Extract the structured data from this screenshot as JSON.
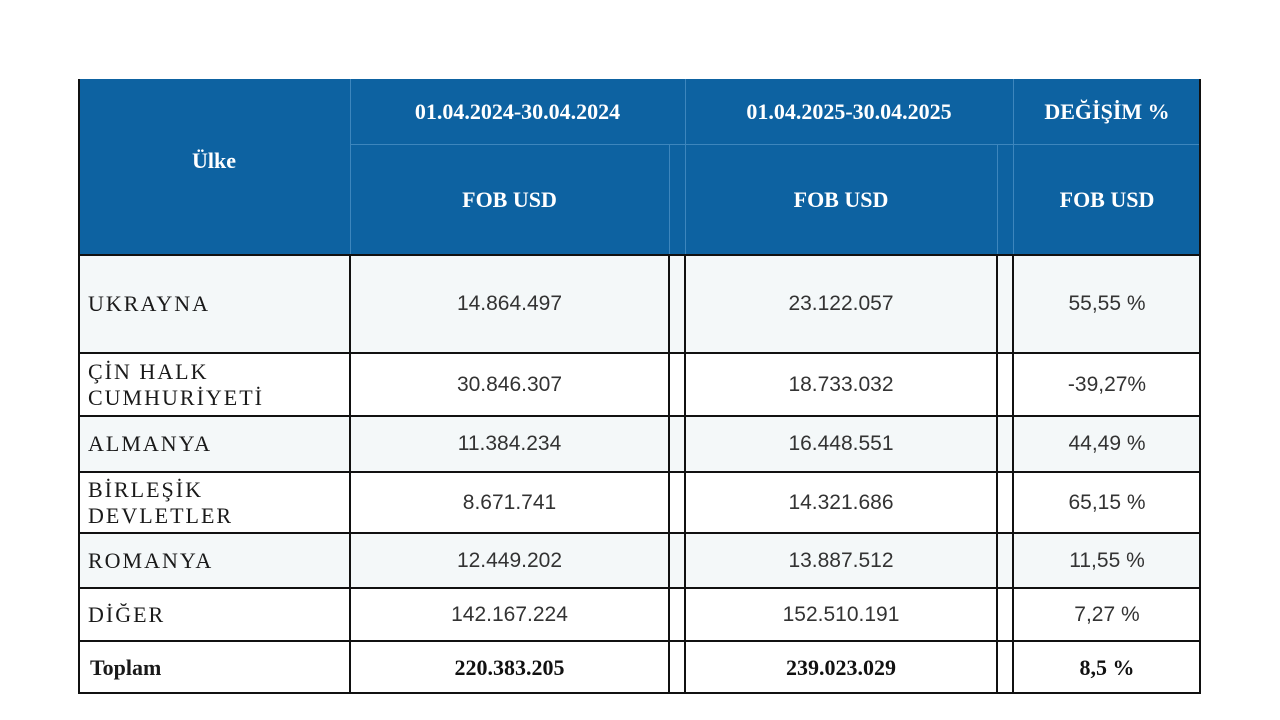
{
  "header": {
    "country_label": "Ülke",
    "period1": "01.04.2024-30.04.2024",
    "period2": "01.04.2025-30.04.2025",
    "change_label": "DEĞİŞİM %",
    "unit1": "FOB USD",
    "unit2": "FOB USD",
    "unit3": "FOB USD"
  },
  "rows": [
    {
      "country": "UKRAYNA",
      "v2024": "14.864.497",
      "v2025": "23.122.057",
      "change": "55,55 %"
    },
    {
      "country": "ÇİN HALK CUMHURİYETİ",
      "v2024": "30.846.307",
      "v2025": "18.733.032",
      "change": "-39,27%"
    },
    {
      "country": "ALMANYA",
      "v2024": "11.384.234",
      "v2025": "16.448.551",
      "change": "44,49 %"
    },
    {
      "country": "BİRLEŞİK DEVLETLER",
      "v2024": "8.671.741",
      "v2025": "14.321.686",
      "change": "65,15 %"
    },
    {
      "country": "ROMANYA",
      "v2024": "12.449.202",
      "v2025": "13.887.512",
      "change": "11,55 %"
    },
    {
      "country": "DİĞER",
      "v2024": "142.167.224",
      "v2025": "152.510.191",
      "change": "7,27 %"
    }
  ],
  "total": {
    "label": "Toplam",
    "v2024": "220.383.205",
    "v2025": "239.023.029",
    "change": "8,5 %"
  }
}
